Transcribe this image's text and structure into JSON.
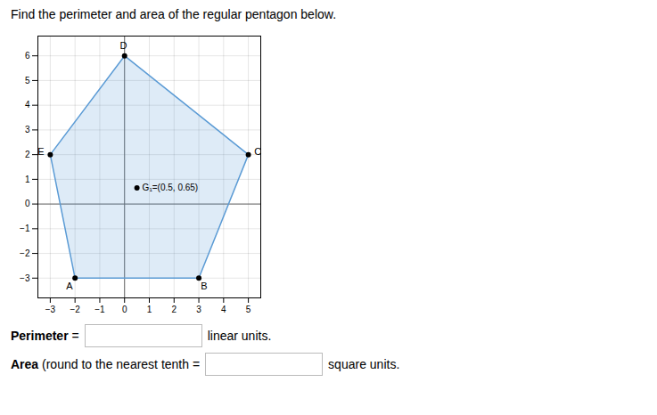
{
  "chart_data": {
    "type": "polygon",
    "title": "Find the perimeter and area of the regular pentagon below.",
    "x": [
      -2,
      3,
      5,
      0,
      -3
    ],
    "values": [
      -3,
      -3,
      2,
      6,
      2
    ],
    "point_labels": [
      "A",
      "B",
      "C",
      "D",
      "E"
    ],
    "color": "#5B9BD5",
    "marker": "circle",
    "annotations": [
      {
        "x": 0.5,
        "y": 0.65,
        "text": "G₁=(0.5, 0.65)"
      }
    ],
    "text_rows": [
      [
        "Perimeter",
        " =",
        "linear units."
      ],
      [
        "Area",
        " (round to the nearest tenth =",
        "square units."
      ]
    ],
    "xlim": [
      -3.5,
      5.5
    ],
    "ylim": [
      -3.8,
      6.8
    ],
    "xticks": [
      -3,
      -2,
      -1,
      0,
      1,
      2,
      3,
      4,
      5
    ],
    "yticks": [
      -3,
      -2,
      -1,
      0,
      1,
      2,
      3,
      4,
      5,
      6
    ],
    "grid": true
  }
}
